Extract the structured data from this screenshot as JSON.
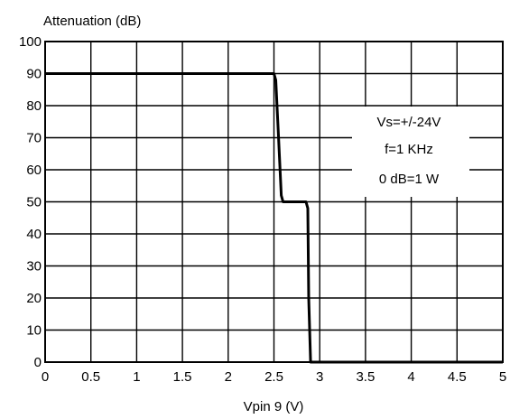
{
  "chart_data": {
    "type": "line",
    "ylabel": "Attenuation  (dB)",
    "xlabel": "Vpin 9  (V)",
    "xlim": [
      0,
      5
    ],
    "ylim": [
      0,
      100
    ],
    "x_ticks": [
      "0",
      "0.5",
      "1",
      "1.5",
      "2",
      "2.5",
      "3",
      "3.5",
      "4",
      "4.5",
      "5"
    ],
    "y_ticks": [
      "0",
      "10",
      "20",
      "30",
      "40",
      "50",
      "60",
      "70",
      "80",
      "90",
      "100"
    ],
    "grid": true,
    "annotations": [
      "Vs=+/-24V",
      "f=1 KHz",
      "0 dB=1 W"
    ],
    "series": [
      {
        "x": [
          0,
          2.5,
          2.52,
          2.55,
          2.58,
          2.6,
          2.85,
          2.87,
          2.88,
          2.9,
          3.5,
          5
        ],
        "y": [
          90,
          90,
          88,
          70,
          52,
          50,
          50,
          48,
          20,
          0,
          0,
          0
        ]
      }
    ]
  }
}
